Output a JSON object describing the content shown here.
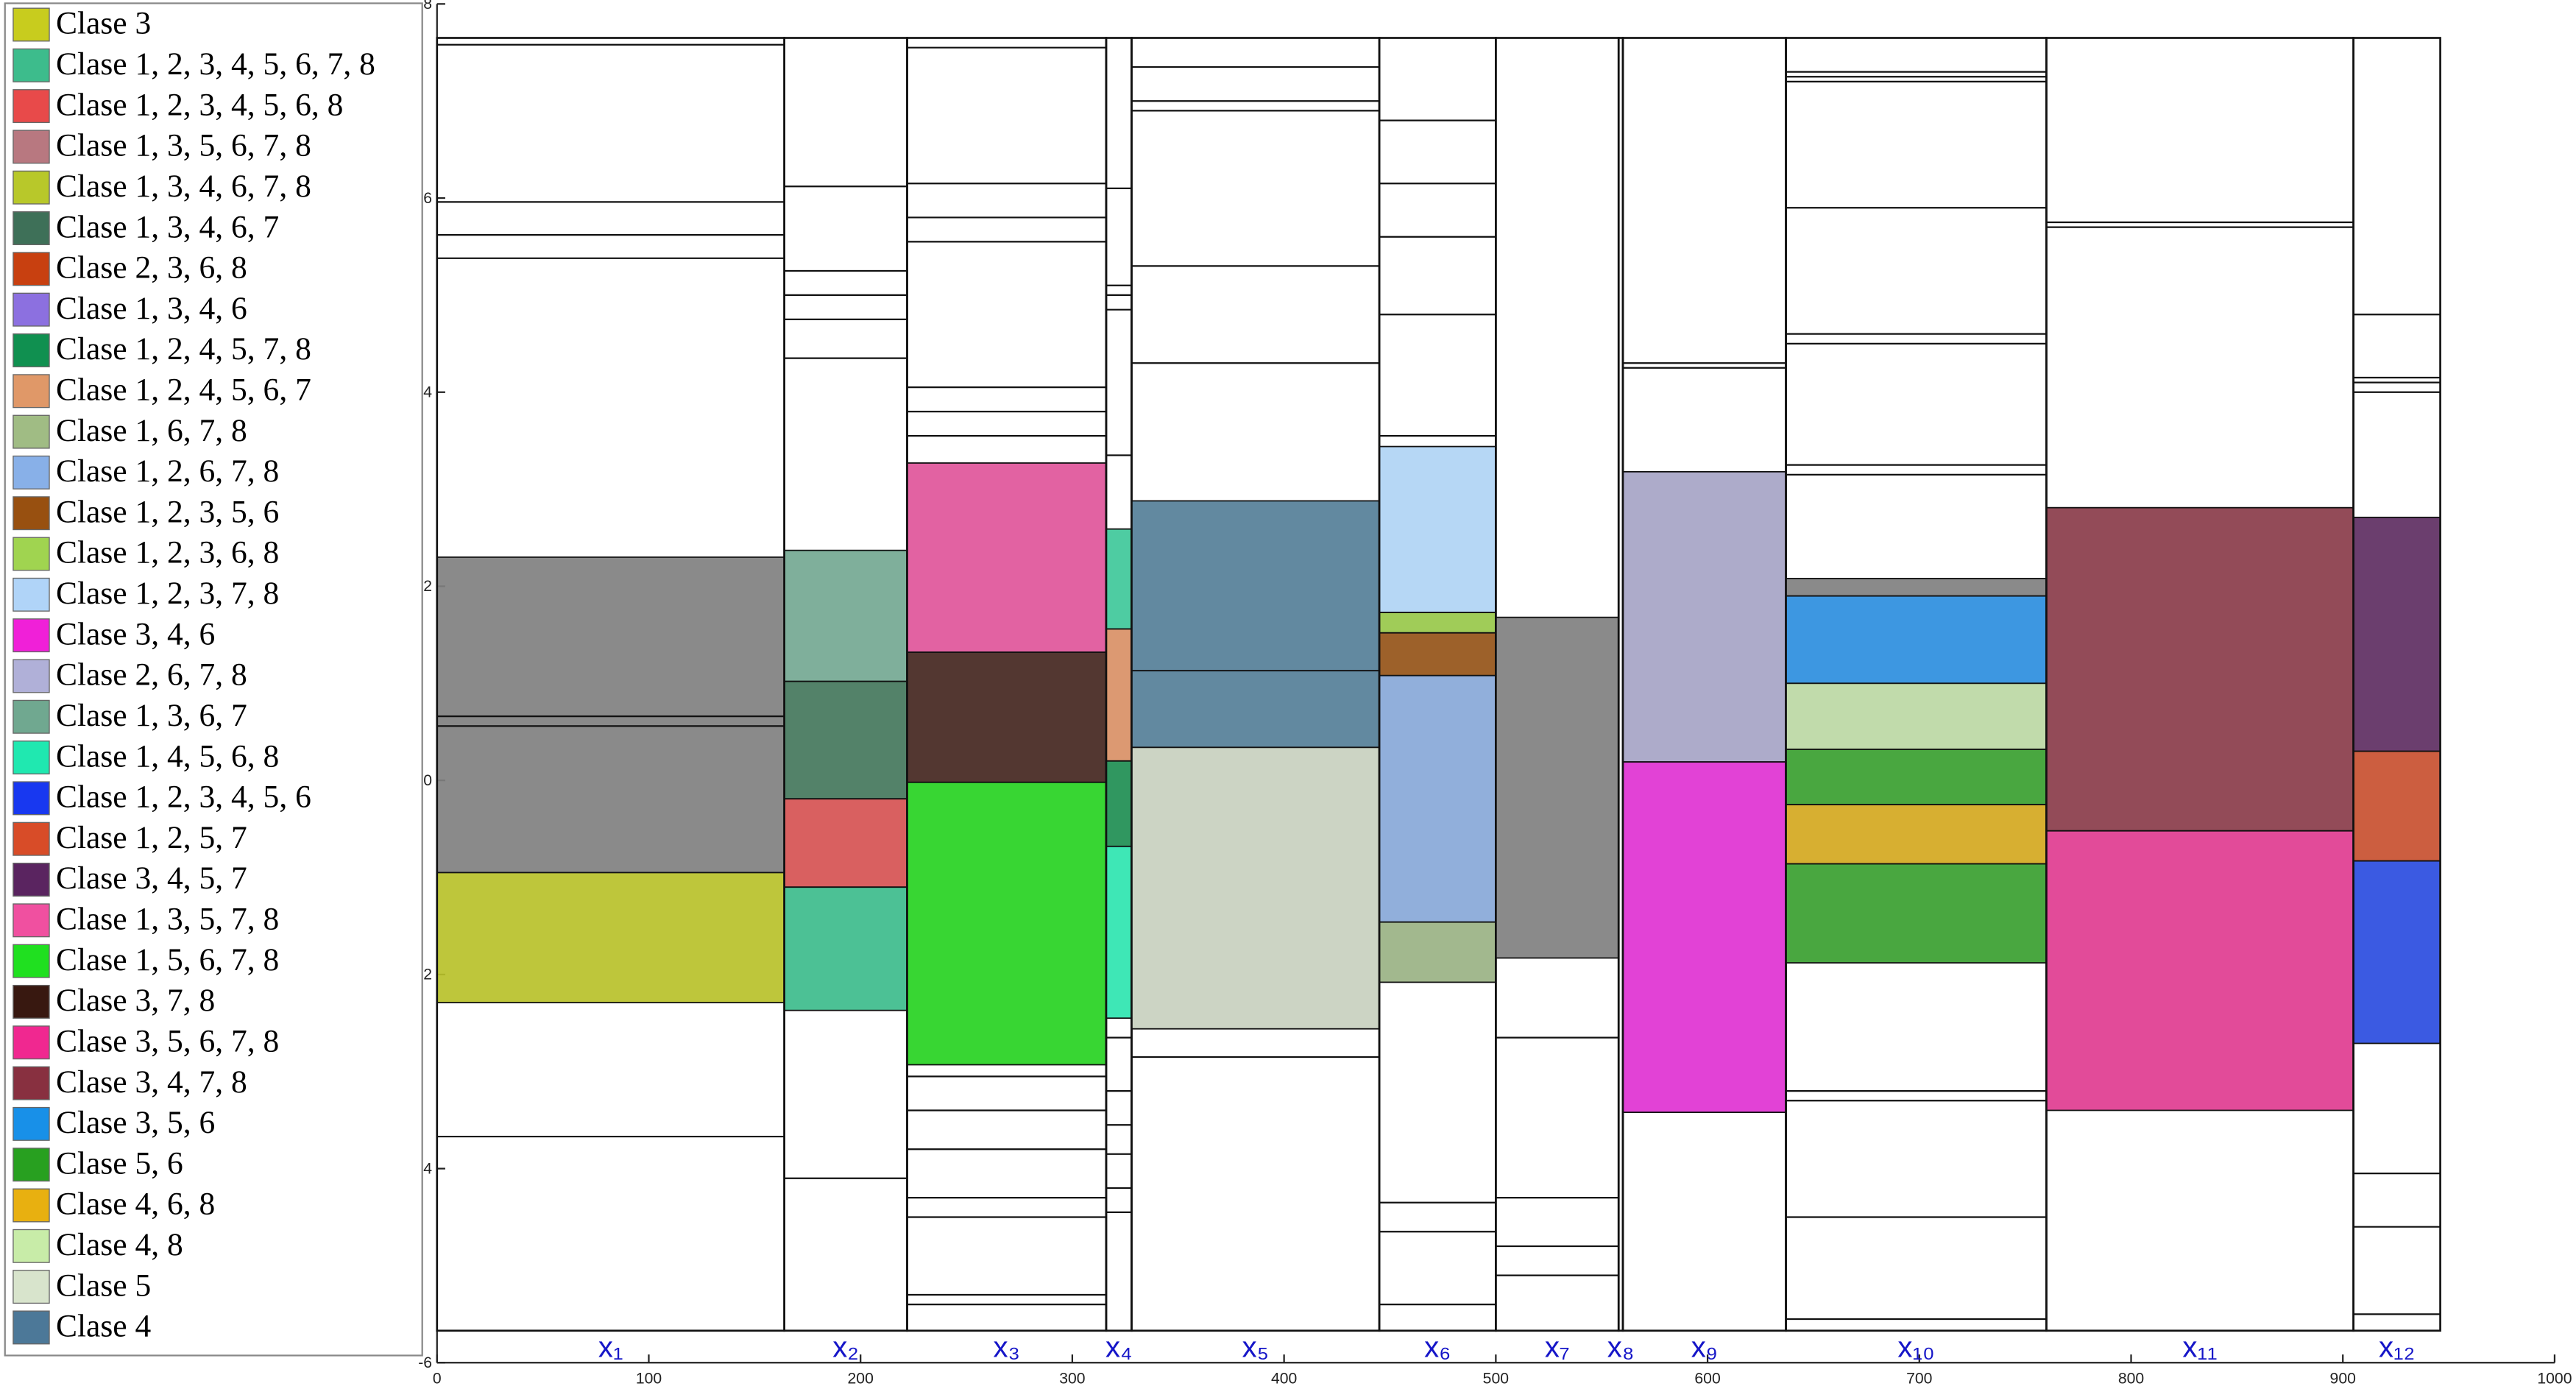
{
  "chart_data": {
    "type": "blocks",
    "xlim": [
      0,
      1000
    ],
    "ylim": [
      -6,
      8
    ],
    "xticks": [
      0,
      100,
      200,
      300,
      400,
      500,
      600,
      700,
      800,
      900,
      1000
    ],
    "yticks": [
      8,
      6,
      4,
      2,
      0,
      {
        "value": -2,
        "label": "2"
      },
      {
        "value": -4,
        "label": "4"
      },
      -6
    ],
    "frame": [
      -5.67,
      7.65
    ],
    "legend": [
      {
        "name": "Clase 3",
        "color": "#c8cc1e"
      },
      {
        "name": "Clase 1, 2, 3, 4, 5, 6, 7, 8",
        "color": "#3dbc8c"
      },
      {
        "name": "Clase 1, 2, 3, 4, 5, 6, 8",
        "color": "#e84a4a"
      },
      {
        "name": "Clase 1, 3, 5, 6, 7, 8",
        "color": "#b87880"
      },
      {
        "name": "Clase 1, 3, 4, 6, 7, 8",
        "color": "#b8c82a"
      },
      {
        "name": "Clase 1, 3, 4, 6, 7",
        "color": "#3e7058"
      },
      {
        "name": "Clase 2, 3, 6, 8",
        "color": "#c84010"
      },
      {
        "name": "Clase 1, 3, 4, 6",
        "color": "#8c70e0"
      },
      {
        "name": "Clase 1, 2, 4, 5, 7, 8",
        "color": "#109050"
      },
      {
        "name": "Clase 1, 2, 4, 5, 6, 7",
        "color": "#e09868"
      },
      {
        "name": "Clase 1, 6, 7, 8",
        "color": "#a0bc84"
      },
      {
        "name": "Clase 1, 2, 6, 7, 8",
        "color": "#88b0e8"
      },
      {
        "name": "Clase 1, 2, 3, 5, 6",
        "color": "#985010"
      },
      {
        "name": "Clase 1, 2, 3, 6, 8",
        "color": "#a0d450"
      },
      {
        "name": "Clase 1, 2, 3, 7, 8",
        "color": "#b0d4f8"
      },
      {
        "name": "Clase 3, 4, 6",
        "color": "#f020d8"
      },
      {
        "name": "Clase 2, 6, 7, 8",
        "color": "#b0b0d8"
      },
      {
        "name": "Clase 1, 3, 6, 7",
        "color": "#70a890"
      },
      {
        "name": "Clase 1, 4, 5, 6, 8",
        "color": "#20e8b0"
      },
      {
        "name": "Clase 1, 2, 3, 4, 5, 6",
        "color": "#1838f0"
      },
      {
        "name": "Clase 1, 2, 5, 7",
        "color": "#d84c28"
      },
      {
        "name": "Clase 3, 4, 5, 7",
        "color": "#5a2460"
      },
      {
        "name": "Clase 1, 3, 5, 7, 8",
        "color": "#f050a0"
      },
      {
        "name": "Clase 1, 5, 6, 7, 8",
        "color": "#20e020"
      },
      {
        "name": "Clase 3, 7, 8",
        "color": "#381810"
      },
      {
        "name": "Clase 3, 5, 6, 7, 8",
        "color": "#f02890"
      },
      {
        "name": "Clase 3, 4, 7, 8",
        "color": "#883040"
      },
      {
        "name": "Clase 3, 5, 6",
        "color": "#1890e8"
      },
      {
        "name": "Clase 5, 6",
        "color": "#28a020"
      },
      {
        "name": "Clase 4, 6, 8",
        "color": "#e8b010"
      },
      {
        "name": "Clase 4, 8",
        "color": "#c8eca8"
      },
      {
        "name": "Clase 5",
        "color": "#d8e4cc"
      },
      {
        "name": "Clase 4",
        "color": "#4c7898"
      }
    ],
    "columns": [
      {
        "label": "x₁",
        "x": [
          0,
          164
        ],
        "levels": [
          7.58,
          5.96,
          5.62,
          5.38,
          0.66,
          0.56,
          -3.67
        ],
        "boxes": [
          {
            "y": [
              -0.95,
              2.3
            ],
            "color": "#808080"
          },
          {
            "y": [
              -2.29,
              -0.95
            ],
            "color": "#b8c12a"
          }
        ]
      },
      {
        "label": "x₂",
        "x": [
          164,
          222
        ],
        "levels": [
          6.12,
          5.25,
          5.0,
          4.75,
          4.35,
          -4.1
        ],
        "boxes": [
          {
            "y": [
              1.02,
              2.37
            ],
            "color": "#74a892"
          },
          {
            "y": [
              -0.19,
              1.02
            ],
            "color": "#44775c"
          },
          {
            "y": [
              -1.1,
              -0.19
            ],
            "color": "#d65252"
          },
          {
            "y": [
              -2.37,
              -1.1
            ],
            "color": "#3dbc8c"
          }
        ]
      },
      {
        "label": "x₃",
        "x": [
          222,
          316
        ],
        "levels": [
          7.55,
          6.15,
          5.8,
          5.55,
          4.05,
          3.8,
          3.55,
          -3.05,
          -3.4,
          -3.8,
          -4.3,
          -4.5,
          -5.3,
          -5.4
        ],
        "boxes": [
          {
            "y": [
              1.32,
              3.27
            ],
            "color": "#e0559a"
          },
          {
            "y": [
              -0.02,
              1.32
            ],
            "color": "#44261f"
          },
          {
            "y": [
              -2.93,
              -0.02
            ],
            "color": "#27d322"
          }
        ]
      },
      {
        "label": "x₄",
        "x": [
          316,
          328
        ],
        "levels": [
          6.1,
          5.1,
          5.0,
          4.85,
          3.35,
          -2.65,
          -3.2,
          -3.55,
          -3.85,
          -4.2,
          -4.45
        ],
        "boxes": [
          {
            "y": [
              1.56,
              2.59
            ],
            "color": "#3fc89a"
          },
          {
            "y": [
              0.2,
              1.56
            ],
            "color": "#d99066"
          },
          {
            "y": [
              -0.68,
              0.2
            ],
            "color": "#1e8e52"
          },
          {
            "y": [
              -2.45,
              -0.68
            ],
            "color": "#2ee5b0"
          }
        ]
      },
      {
        "label": "x₅",
        "x": [
          328,
          445
        ],
        "levels": [
          7.35,
          7.0,
          6.9,
          5.3,
          4.3,
          -2.85
        ],
        "boxes": [
          {
            "y": [
              1.13,
              2.88
            ],
            "color": "#557f98"
          },
          {
            "y": [
              0.34,
              1.13
            ],
            "color": "#557f98"
          },
          {
            "y": [
              -2.56,
              0.34
            ],
            "color": "#c8d0bf"
          }
        ]
      },
      {
        "label": "x₆",
        "x": [
          445,
          500
        ],
        "levels": [
          6.8,
          6.15,
          5.6,
          4.8,
          3.55,
          -4.35,
          -4.65,
          -5.4
        ],
        "boxes": [
          {
            "y": [
              1.73,
              3.44
            ],
            "color": "#b0d4f4"
          },
          {
            "y": [
              1.52,
              1.73
            ],
            "color": "#98c84a"
          },
          {
            "y": [
              1.08,
              1.52
            ],
            "color": "#955418"
          },
          {
            "y": [
              -1.46,
              1.08
            ],
            "color": "#88a8d8"
          },
          {
            "y": [
              -2.08,
              -1.46
            ],
            "color": "#9ab284"
          }
        ]
      },
      {
        "label": "x₇",
        "x": [
          500,
          558
        ],
        "levels": [
          -2.65,
          -4.3,
          -4.8,
          -5.1
        ],
        "boxes": [
          {
            "y": [
              -1.83,
              1.68
            ],
            "color": "#808080"
          }
        ]
      },
      {
        "label": "x₈",
        "x": [
          558,
          560
        ],
        "levels": [],
        "boxes": []
      },
      {
        "label": "x₉",
        "x": [
          560,
          637
        ],
        "levels": [
          4.3,
          4.25
        ],
        "boxes": [
          {
            "y": [
              0.19,
              3.18
            ],
            "color": "#a6a4c6"
          },
          {
            "y": [
              -3.42,
              0.19
            ],
            "color": "#e032d2"
          }
        ]
      },
      {
        "label": "x₁₀",
        "x": [
          637,
          760
        ],
        "levels": [
          7.3,
          7.25,
          7.2,
          5.9,
          4.6,
          4.5,
          3.25,
          3.15,
          -3.2,
          -3.3,
          -4.5,
          -5.55
        ],
        "boxes": [
          {
            "y": [
              1.9,
              2.08
            ],
            "color": "#808080"
          },
          {
            "y": [
              1.0,
              1.9
            ],
            "color": "#2c8ede"
          },
          {
            "y": [
              0.32,
              1.0
            ],
            "color": "#bcd8a4"
          },
          {
            "y": [
              -0.25,
              0.32
            ],
            "color": "#3aa030"
          },
          {
            "y": [
              -0.86,
              -0.25
            ],
            "color": "#d4a820"
          },
          {
            "y": [
              -1.88,
              -0.86
            ],
            "color": "#3aa030"
          }
        ]
      },
      {
        "label": "x₁₁",
        "x": [
          760,
          905
        ],
        "levels": [
          5.75,
          5.7
        ],
        "boxes": [
          {
            "y": [
              -0.52,
              2.81
            ],
            "color": "#8a3c4a"
          },
          {
            "y": [
              -3.4,
              -0.52
            ],
            "color": "#e03c90"
          }
        ]
      },
      {
        "label": "x₁₂",
        "x": [
          905,
          946
        ],
        "levels": [
          4.8,
          4.15,
          4.1,
          4.0,
          -4.05,
          -4.6,
          -5.5
        ],
        "boxes": [
          {
            "y": [
              0.3,
              2.71
            ],
            "color": "#5e2e62"
          },
          {
            "y": [
              -0.83,
              0.3
            ],
            "color": "#c85030"
          },
          {
            "y": [
              -2.71,
              -0.83
            ],
            "color": "#2a4ce0"
          }
        ]
      }
    ]
  }
}
